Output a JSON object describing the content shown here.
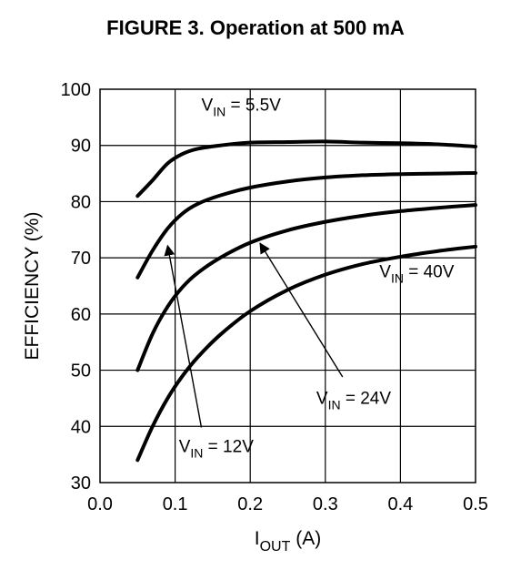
{
  "figure_title": "FIGURE 3. Operation at 500 mA",
  "chart_data": {
    "type": "line",
    "xlabel": {
      "main": "I",
      "sub": "OUT",
      "unit": " (A)"
    },
    "ylabel": "EFFICIENCY (%)",
    "xlim": [
      0.0,
      0.5
    ],
    "ylim": [
      30,
      100
    ],
    "xticks": [
      0.0,
      0.1,
      0.2,
      0.3,
      0.4,
      0.5
    ],
    "xtick_labels": [
      "0.0",
      "0.1",
      "0.2",
      "0.3",
      "0.4",
      "0.5"
    ],
    "yticks": [
      30,
      40,
      50,
      60,
      70,
      80,
      90,
      100
    ],
    "ytick_labels": [
      "30",
      "40",
      "50",
      "60",
      "70",
      "80",
      "90",
      "100"
    ],
    "grid": true,
    "line_color": "#000000",
    "series": [
      {
        "name": "V_IN = 5.5V",
        "x": [
          0.05,
          0.07,
          0.09,
          0.11,
          0.13,
          0.16,
          0.2,
          0.25,
          0.3,
          0.35,
          0.4,
          0.45,
          0.5
        ],
        "y": [
          81,
          83.8,
          86.8,
          88.5,
          89.4,
          90.0,
          90.5,
          90.6,
          90.7,
          90.5,
          90.4,
          90.2,
          89.8
        ]
      },
      {
        "name": "V_IN = 12V",
        "x": [
          0.05,
          0.07,
          0.09,
          0.11,
          0.13,
          0.16,
          0.2,
          0.25,
          0.3,
          0.35,
          0.4,
          0.45,
          0.5
        ],
        "y": [
          66.5,
          71.3,
          75.2,
          77.9,
          79.6,
          81.1,
          82.5,
          83.6,
          84.3,
          84.7,
          84.9,
          85.0,
          85.1
        ]
      },
      {
        "name": "V_IN = 24V",
        "x": [
          0.05,
          0.07,
          0.09,
          0.11,
          0.13,
          0.16,
          0.2,
          0.25,
          0.3,
          0.35,
          0.4,
          0.45,
          0.5
        ],
        "y": [
          50,
          56.5,
          61.3,
          64.8,
          67.3,
          70.0,
          72.7,
          74.9,
          76.4,
          77.5,
          78.3,
          78.9,
          79.4
        ]
      },
      {
        "name": "V_IN = 40V",
        "x": [
          0.05,
          0.07,
          0.09,
          0.11,
          0.13,
          0.16,
          0.2,
          0.25,
          0.3,
          0.35,
          0.4,
          0.45,
          0.5
        ],
        "y": [
          34,
          40,
          45,
          49,
          52.3,
          56.3,
          60.5,
          64.3,
          67.0,
          68.9,
          70.2,
          71.2,
          72.0
        ]
      }
    ],
    "annotations": [
      {
        "series": "V_IN = 5.5V",
        "main": "V",
        "sub": "IN",
        "rest": " = 5.5V",
        "at": [
          0.135,
          96.2
        ],
        "arrow": false
      },
      {
        "series": "V_IN = 40V",
        "main": "V",
        "sub": "IN",
        "rest": " = 40V",
        "at": [
          0.372,
          66.5
        ],
        "arrow": false
      },
      {
        "series": "V_IN = 24V",
        "main": "V",
        "sub": "IN",
        "rest": " = 24V",
        "at": [
          0.288,
          44.0
        ],
        "arrow": true,
        "arrow_from": [
          0.323,
          48.8
        ],
        "arrow_to": [
          0.213,
          72.6
        ]
      },
      {
        "series": "V_IN = 12V",
        "main": "V",
        "sub": "IN",
        "rest": " = 12V",
        "at": [
          0.105,
          35.4
        ],
        "arrow": true,
        "arrow_from": [
          0.135,
          39.8
        ],
        "arrow_to": [
          0.09,
          72.2
        ]
      }
    ]
  }
}
